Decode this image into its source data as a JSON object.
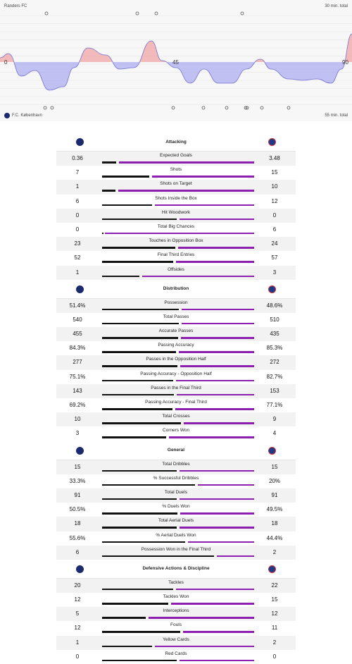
{
  "momentum": {
    "home_team": "Randers FC",
    "away_team": "F.C. København",
    "home_total": "30 min. total",
    "away_total": "55 min. total",
    "axis_labels": [
      "0",
      "45",
      "90"
    ],
    "colors": {
      "home": "#f0a0a0",
      "away": "#a8a8f0"
    }
  },
  "sections": [
    {
      "title": "Attacking",
      "rows": [
        {
          "label": "Expected Goals",
          "home": "0.36",
          "away": "3.48",
          "h": 0.36,
          "a": 3.48
        },
        {
          "label": "Shots",
          "home": "7",
          "away": "15",
          "h": 7,
          "a": 15
        },
        {
          "label": "Shots on Target",
          "home": "1",
          "away": "10",
          "h": 1,
          "a": 10
        },
        {
          "label": "Shots Inside the Box",
          "home": "6",
          "away": "12",
          "h": 6,
          "a": 12
        },
        {
          "label": "Hit Woodwork",
          "home": "0",
          "away": "0",
          "h": 0,
          "a": 0
        },
        {
          "label": "Total Big Chances",
          "home": "0",
          "away": "6",
          "h": 0,
          "a": 6
        },
        {
          "label": "Touches in Opposition Box",
          "home": "23",
          "away": "24",
          "h": 23,
          "a": 24
        },
        {
          "label": "Final Third Entries",
          "home": "52",
          "away": "57",
          "h": 52,
          "a": 57
        },
        {
          "label": "Offsides",
          "home": "1",
          "away": "3",
          "h": 1,
          "a": 3
        }
      ]
    },
    {
      "title": "Distribution",
      "rows": [
        {
          "label": "Possession",
          "home": "51.4%",
          "away": "48.6%",
          "h": 51.4,
          "a": 48.6
        },
        {
          "label": "Total Passes",
          "home": "540",
          "away": "510",
          "h": 540,
          "a": 510
        },
        {
          "label": "Accurate Passes",
          "home": "455",
          "away": "435",
          "h": 455,
          "a": 435
        },
        {
          "label": "Passing Accuracy",
          "home": "84.3%",
          "away": "85.3%",
          "h": 84.3,
          "a": 85.3
        },
        {
          "label": "Passes in the Opposition Half",
          "home": "277",
          "away": "272",
          "h": 277,
          "a": 272
        },
        {
          "label": "Passing Accuracy - Opposition Half",
          "home": "75.1%",
          "away": "82.7%",
          "h": 75.1,
          "a": 82.7
        },
        {
          "label": "Passes in the Final Third",
          "home": "143",
          "away": "153",
          "h": 143,
          "a": 153
        },
        {
          "label": "Passing Accuracy - Final Third",
          "home": "69.2%",
          "away": "77.1%",
          "h": 69.2,
          "a": 77.1
        },
        {
          "label": "Total Crosses",
          "home": "10",
          "away": "9",
          "h": 10,
          "a": 9
        },
        {
          "label": "Corners Won",
          "home": "3",
          "away": "4",
          "h": 3,
          "a": 4
        }
      ]
    },
    {
      "title": "General",
      "rows": [
        {
          "label": "Total Dribbles",
          "home": "15",
          "away": "15",
          "h": 15,
          "a": 15
        },
        {
          "label": "% Successful Dribbles",
          "home": "33.3%",
          "away": "20%",
          "h": 33.3,
          "a": 20
        },
        {
          "label": "Total Duels",
          "home": "91",
          "away": "91",
          "h": 91,
          "a": 91
        },
        {
          "label": "% Duels Won",
          "home": "50.5%",
          "away": "49.5%",
          "h": 50.5,
          "a": 49.5
        },
        {
          "label": "Total Aerial Duels",
          "home": "18",
          "away": "18",
          "h": 18,
          "a": 18
        },
        {
          "label": "% Aerial Duels Won",
          "home": "55.6%",
          "away": "44.4%",
          "h": 55.6,
          "a": 44.4
        },
        {
          "label": "Possession Won in the Final Third",
          "home": "6",
          "away": "2",
          "h": 6,
          "a": 2
        }
      ]
    },
    {
      "title": "Defensive Actions & Discipline",
      "rows": [
        {
          "label": "Tackles",
          "home": "20",
          "away": "22",
          "h": 20,
          "a": 22
        },
        {
          "label": "Tackles Won",
          "home": "12",
          "away": "15",
          "h": 12,
          "a": 15
        },
        {
          "label": "Interceptions",
          "home": "5",
          "away": "12",
          "h": 5,
          "a": 12
        },
        {
          "label": "Fouls",
          "home": "12",
          "away": "11",
          "h": 12,
          "a": 11
        },
        {
          "label": "Yellow Cards",
          "home": "1",
          "away": "2",
          "h": 1,
          "a": 2
        },
        {
          "label": "Red Cards",
          "home": "0",
          "away": "0",
          "h": 0,
          "a": 0
        }
      ]
    }
  ]
}
